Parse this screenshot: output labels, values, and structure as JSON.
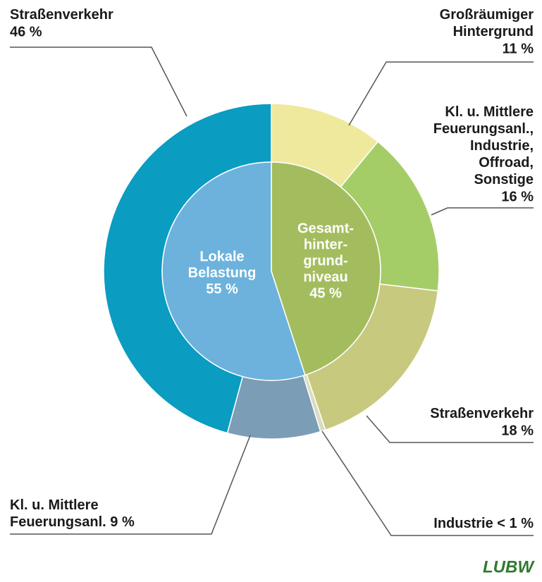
{
  "chart_data": {
    "type": "nested-donut",
    "series": [
      {
        "labels": [
          [
            "Gesamt-",
            "hinter-",
            "grund-",
            "niveau"
          ],
          [
            "Lokale",
            "Belastung"
          ]
        ],
        "values": [
          45,
          55
        ],
        "value_labels": [
          "45 %",
          "55 %"
        ],
        "colors": [
          "#a3bd5e",
          "#6cb2dd"
        ]
      },
      {
        "labels": [
          [
            "Großräumiger",
            "Hintergrund"
          ],
          [
            "Kl. u. Mittlere",
            "Feuerungsanl.,",
            "Industrie,",
            "Offroad,",
            "Sonstige"
          ],
          [
            "Straßenverkehr"
          ],
          [
            "Industrie"
          ],
          [
            "Kl. u. Mittlere",
            "Feuerungsanl."
          ],
          [
            "Straßenverkehr"
          ]
        ],
        "values": [
          11,
          16,
          18,
          0.5,
          9,
          46
        ],
        "value_labels": [
          "11 %",
          "16 %",
          "18 %",
          "< 1 %",
          "9 %",
          "46 %"
        ],
        "colors": [
          "#eee99c",
          "#a5cd67",
          "#c7ca7e",
          "#d9dcc0",
          "#7b9db6",
          "#0a9cc1"
        ]
      }
    ],
    "logo": "LUBW"
  }
}
